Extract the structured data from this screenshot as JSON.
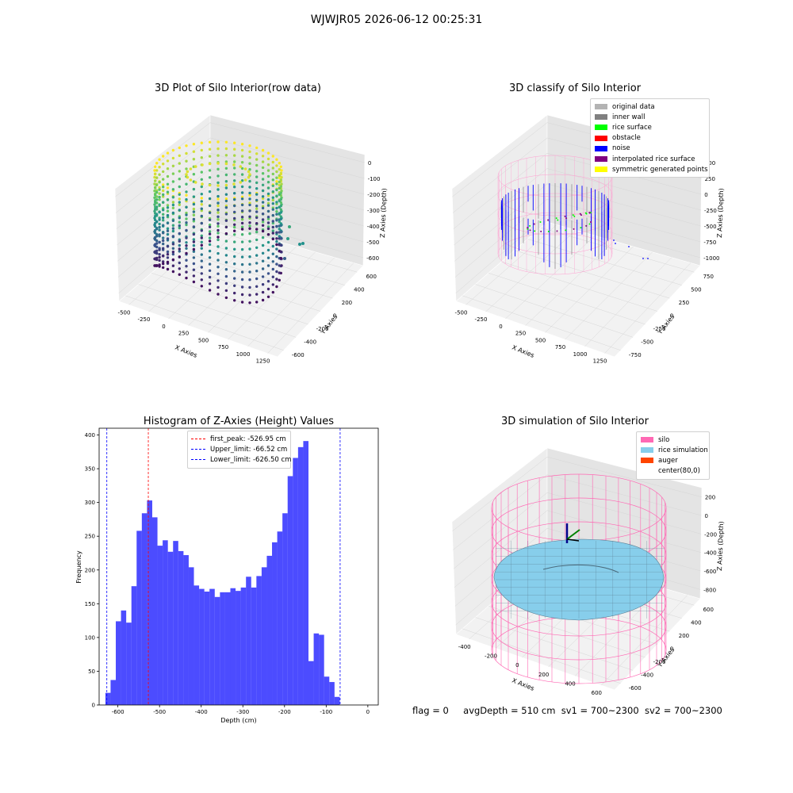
{
  "window": {
    "title": "WJWJR05 2026-06-12 00:25:31"
  },
  "panels": {
    "raw": {
      "title": "3D Plot of Silo Interior(row data)",
      "xlabel": "X Axies",
      "ylabel": "Y Axies",
      "zlabel": "Z Axies (Depth)",
      "xticks": [
        "-500",
        "-250",
        "0",
        "250",
        "500",
        "750",
        "1000",
        "1250"
      ],
      "yticks": [
        "600",
        "400",
        "200",
        "0",
        "-200",
        "-400",
        "-600"
      ],
      "zticks": [
        "0",
        "-100",
        "-200",
        "-300",
        "-400",
        "-500",
        "-600"
      ]
    },
    "classify": {
      "title": "3D classify of Silo Interior",
      "xlabel": "X Axies",
      "ylabel": "Y Axies",
      "zlabel": "Z Axies (Depth)",
      "xticks": [
        "-500",
        "-250",
        "0",
        "250",
        "500",
        "750",
        "1000",
        "1250"
      ],
      "yticks": [
        "750",
        "500",
        "250",
        "0",
        "-250",
        "-500",
        "-750"
      ],
      "zticks": [
        "500",
        "250",
        "0",
        "-250",
        "-500",
        "-750",
        "-1000"
      ],
      "legend": [
        {
          "label": "original data",
          "color": "#b3b3b3"
        },
        {
          "label": "inner wall",
          "color": "#808080"
        },
        {
          "label": "rice surface",
          "color": "#00ff00"
        },
        {
          "label": "obstacle",
          "color": "#ff0000"
        },
        {
          "label": "noise",
          "color": "#0000ff"
        },
        {
          "label": "interpolated rice surface",
          "color": "#800080"
        },
        {
          "label": "symmetric generated points",
          "color": "#ffff00"
        }
      ]
    },
    "simulation": {
      "title": "3D simulation of Silo Interior",
      "xlabel": "X Axies",
      "ylabel": "Y Axies",
      "zlabel": "Z Axies (Depth)",
      "xticks": [
        "-400",
        "-200",
        "0",
        "200",
        "400",
        "600"
      ],
      "yticks": [
        "600",
        "400",
        "200",
        "0",
        "-200",
        "-400",
        "-600"
      ],
      "zticks": [
        "200",
        "0",
        "-200",
        "-400",
        "-600",
        "-800"
      ],
      "legend": [
        {
          "label": "silo",
          "color": "#ff69b4"
        },
        {
          "label": "rice simulation",
          "color": "#87ceeb"
        },
        {
          "label": "auger",
          "color": "#ff4500"
        },
        {
          "label": "center(80,0)",
          "color": "#ffffff"
        }
      ]
    }
  },
  "chart_data": {
    "type": "bar",
    "title": "Histogram of Z-Axies (Height) Values",
    "xlabel": "Depth (cm)",
    "ylabel": "Frequency",
    "xlim": [
      -645,
      25
    ],
    "ylim": [
      0,
      410
    ],
    "xticks": [
      -600,
      -500,
      -400,
      -300,
      -200,
      -100,
      0
    ],
    "yticks": [
      0,
      50,
      100,
      150,
      200,
      250,
      300,
      350,
      400
    ],
    "bin_start": -630,
    "bin_width": 12.5,
    "values": [
      18,
      37,
      124,
      140,
      122,
      176,
      258,
      284,
      303,
      278,
      236,
      244,
      227,
      243,
      228,
      222,
      204,
      177,
      172,
      168,
      172,
      160,
      167,
      167,
      173,
      169,
      174,
      190,
      174,
      191,
      204,
      221,
      241,
      257,
      284,
      339,
      366,
      382,
      391,
      65,
      106,
      104,
      42,
      34,
      12
    ],
    "bar_color": "#0000ff",
    "bar_alpha": 0.7,
    "vlines": [
      {
        "label": "first_peak: -526.95 cm",
        "x": -526.95,
        "color": "#ff0000"
      },
      {
        "label": "Upper_limit: -66.52 cm",
        "x": -66.52,
        "color": "#0000ff"
      },
      {
        "label": "Lower_limit: -626.50 cm",
        "x": -626.5,
        "color": "#0000ff"
      }
    ],
    "legend_position": "upper center",
    "grid": false
  },
  "footer": {
    "flag": "flag = 0",
    "avg": "avgDepth = 510 cm",
    "sv1": "sv1 = 700~2300",
    "sv2": "sv2 = 700~2300"
  }
}
